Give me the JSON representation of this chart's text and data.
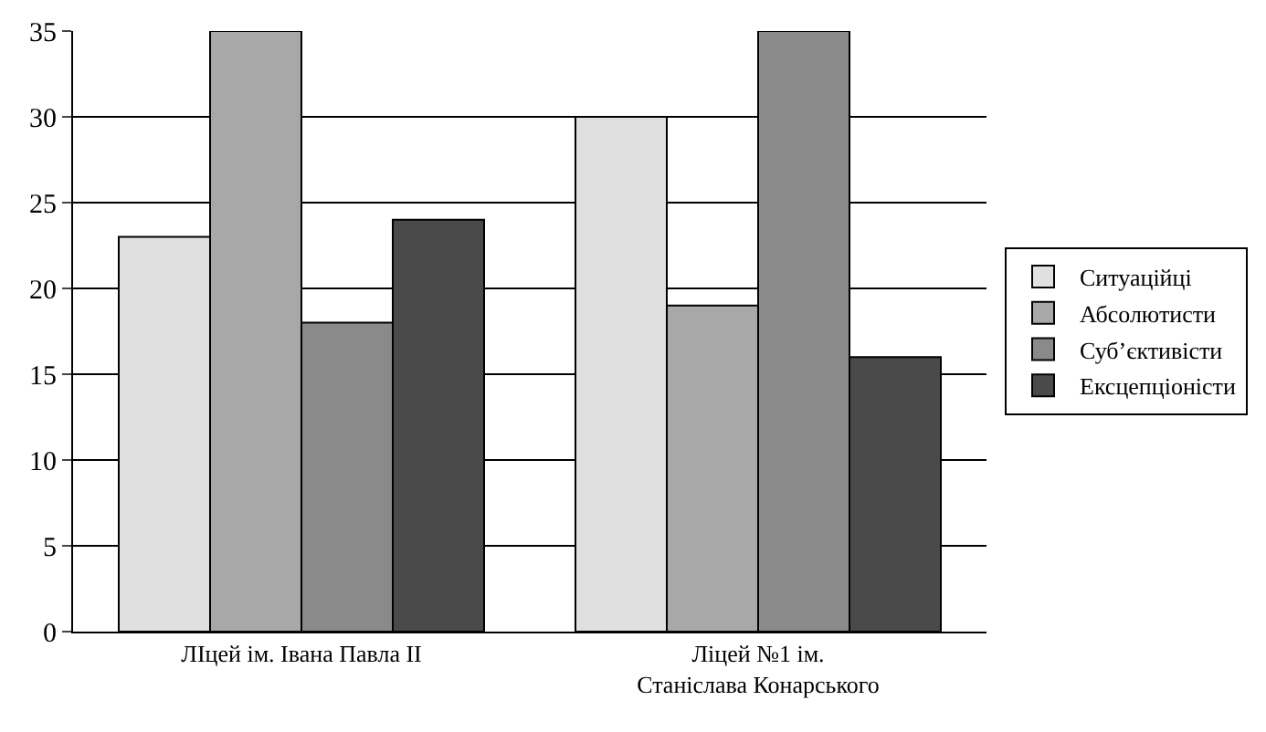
{
  "chart_data": {
    "type": "bar",
    "categories": [
      "ЛІцей ім. Івана Павла ІІ",
      "Ліцей №1 ім.\nСтаніслава Конарського"
    ],
    "series": [
      {
        "name": "Ситуаційці",
        "color": "#e0e0e0",
        "values": [
          23,
          30
        ]
      },
      {
        "name": "Абсолютисти",
        "color": "#a8a8a8",
        "values": [
          35,
          19
        ]
      },
      {
        "name": "Суб’єктивісти",
        "color": "#8a8a8a",
        "values": [
          18,
          35
        ]
      },
      {
        "name": "Ексцепціоністи",
        "color": "#4a4a4a",
        "values": [
          24,
          16
        ]
      }
    ],
    "ylim": [
      0,
      35
    ],
    "yticks": [
      0,
      5,
      10,
      15,
      20,
      25,
      30,
      35
    ],
    "grid": "y",
    "legend": "right"
  }
}
